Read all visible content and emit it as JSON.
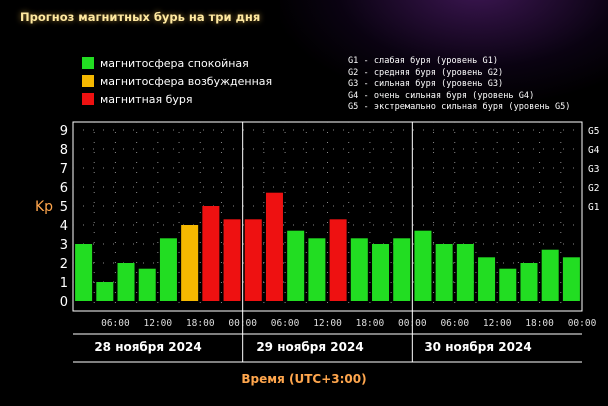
{
  "title": "Прогноз магнитных бурь на три дня",
  "legend": [
    {
      "label": "магнитосфера спокойная",
      "color": "#22dd22"
    },
    {
      "label": "магнитосфера возбужденная",
      "color": "#f5b800"
    },
    {
      "label": "магнитная буря",
      "color": "#ee1111"
    }
  ],
  "g_scale": [
    "G1 - слабая буря (уровень G1)",
    "G2 - средняя буря (уровень G2)",
    "G3 - сильная буря (уровень G3)",
    "G4 - очень сильная буря (уровень G4)",
    "G5 - экстремально сильная буря (уровень G5)"
  ],
  "chart_data": {
    "type": "bar",
    "ylabel": "Kp",
    "xlabel": "Время (UTC+3:00)",
    "ylim": [
      0,
      9
    ],
    "yticks": [
      "0",
      "1",
      "2",
      "3",
      "4",
      "5",
      "6",
      "7",
      "8",
      "9"
    ],
    "right_ticks": [
      {
        "label": "G1",
        "value": 5
      },
      {
        "label": "G2",
        "value": 6
      },
      {
        "label": "G3",
        "value": 7
      },
      {
        "label": "G4",
        "value": 8
      },
      {
        "label": "G5",
        "value": 9
      }
    ],
    "x_ticks": [
      "06:00",
      "12:00",
      "18:00",
      "00:00",
      "06:00",
      "12:00",
      "18:00",
      "00:00",
      "06:00",
      "12:00",
      "18:00",
      "00:00"
    ],
    "days": [
      "28 ноября 2024",
      "29 ноября 2024",
      "30 ноября 2024"
    ],
    "grid": true,
    "values": [
      3.0,
      1.0,
      2.0,
      1.7,
      3.3,
      4.0,
      5.0,
      4.3,
      4.3,
      5.7,
      3.7,
      3.3,
      4.3,
      3.3,
      3.0,
      3.3,
      3.7,
      3.0,
      3.0,
      2.3,
      1.7,
      2.0,
      2.7,
      2.3
    ],
    "status": [
      "quiet",
      "quiet",
      "quiet",
      "quiet",
      "quiet",
      "active",
      "storm",
      "storm",
      "storm",
      "storm",
      "quiet",
      "quiet",
      "storm",
      "quiet",
      "quiet",
      "quiet",
      "quiet",
      "quiet",
      "quiet",
      "quiet",
      "quiet",
      "quiet",
      "quiet",
      "quiet"
    ],
    "colors": {
      "quiet": "#22dd22",
      "active": "#f5b800",
      "storm": "#ee1111"
    }
  }
}
